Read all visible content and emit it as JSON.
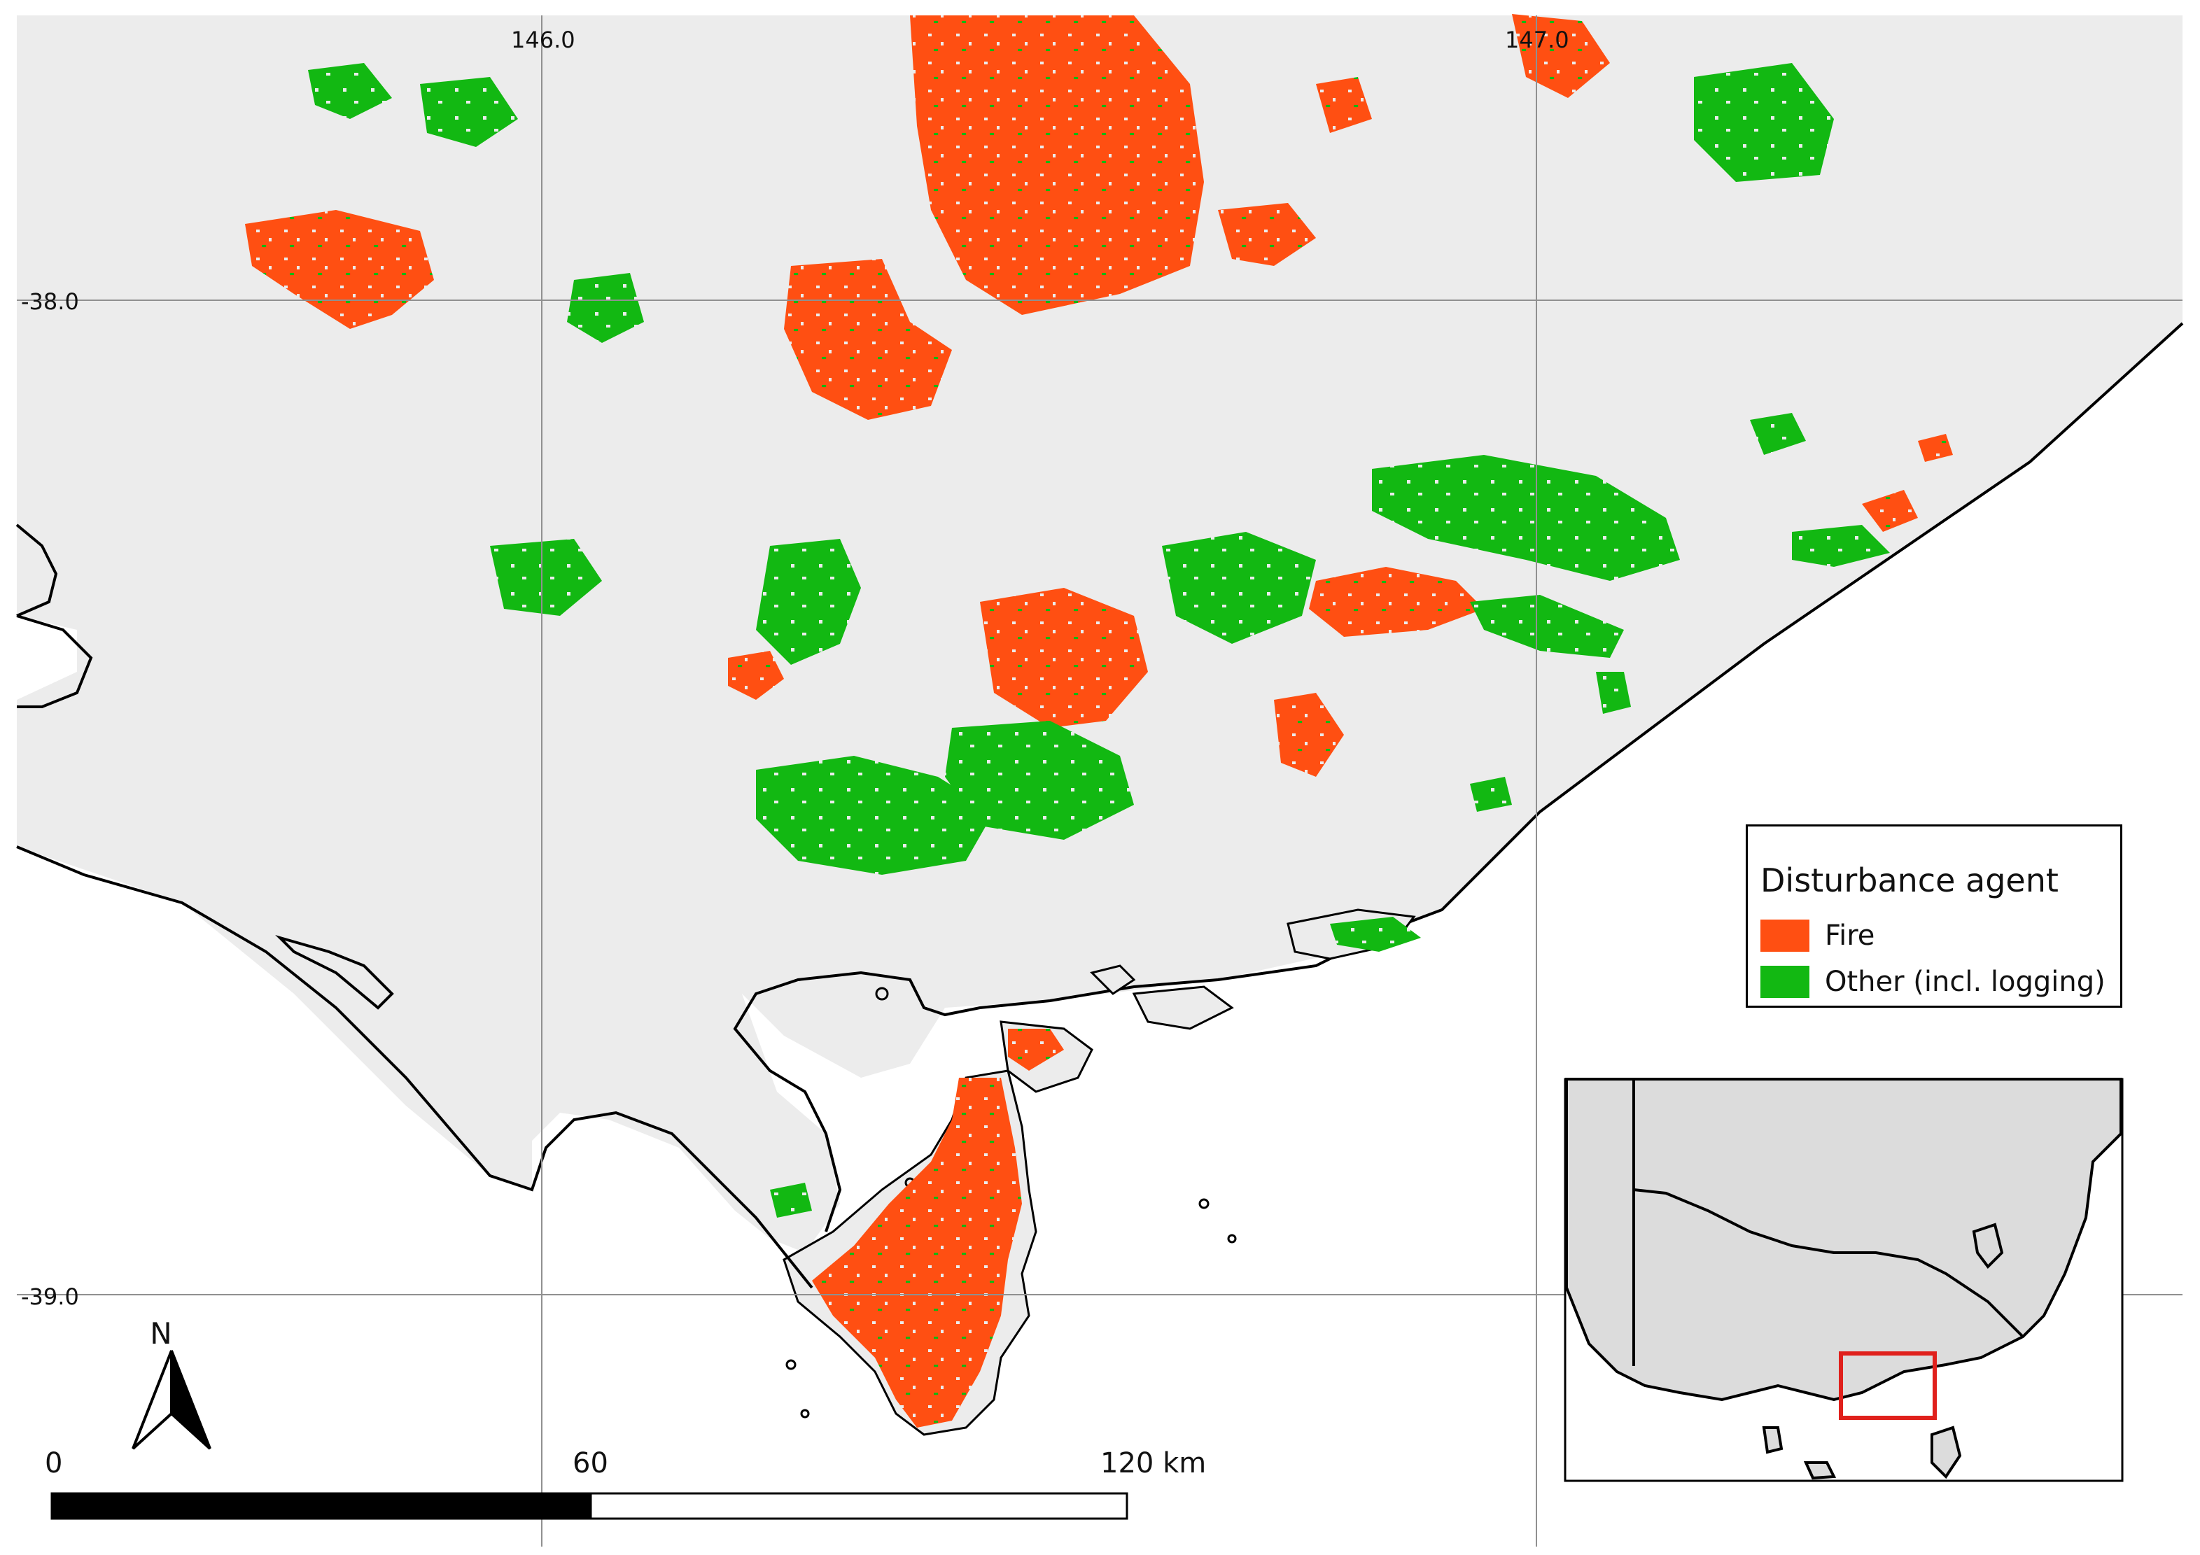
{
  "graticule": {
    "longitudes": [
      "146.0",
      "147.0"
    ],
    "latitudes": [
      "-38.0",
      "-39.0"
    ]
  },
  "legend": {
    "title": "Disturbance agent",
    "items": [
      {
        "label": "Fire",
        "color": "#ff4f12"
      },
      {
        "label": "Other (incl. logging)",
        "color": "#12b812"
      }
    ]
  },
  "scalebar": {
    "ticks": [
      "0",
      "60",
      "120 km"
    ]
  },
  "north_arrow": {
    "label": "N"
  },
  "colors": {
    "land": "#ececec",
    "sea": "#ffffff",
    "coast": "#000000",
    "inset_box": "#e0201c",
    "fire": "#ff4f12",
    "other": "#12b812"
  }
}
